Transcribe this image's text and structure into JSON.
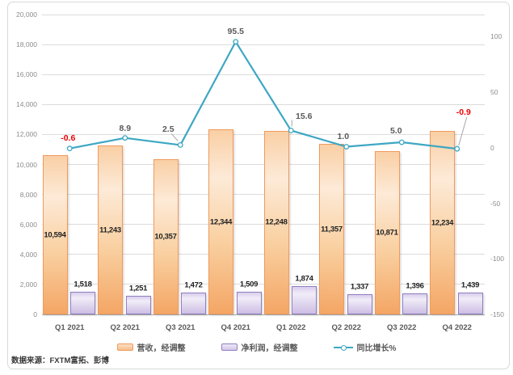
{
  "source_note": "数据来源：FXTM富拓、彭博",
  "chart_data": {
    "type": "combo-bar-line",
    "categories": [
      "Q1 2021",
      "Q2 2021",
      "Q3 2021",
      "Q4 2021",
      "Q1 2022",
      "Q2 2022",
      "Q3 2022",
      "Q4 2022"
    ],
    "series": [
      {
        "name": "营收，经调整",
        "type": "bar",
        "axis": "left",
        "border_color": "#f09a5d",
        "values": [
          10594,
          11243,
          10357,
          12344,
          12248,
          11357,
          10871,
          12234
        ],
        "labels": [
          "10,594",
          "11,243",
          "10,357",
          "12,344",
          "12,248",
          "11,357",
          "10,871",
          "12,234"
        ]
      },
      {
        "name": "净利润，经调整",
        "type": "bar",
        "axis": "left",
        "border_color": "#9080bf",
        "values": [
          1518,
          1251,
          1472,
          1509,
          1874,
          1337,
          1396,
          1439
        ],
        "labels": [
          "1,518",
          "1,251",
          "1,472",
          "1,509",
          "1,874",
          "1,337",
          "1,396",
          "1,439"
        ]
      },
      {
        "name": "同比增长%",
        "type": "line",
        "axis": "right",
        "color": "#3ea7c3",
        "values": [
          -0.6,
          8.9,
          2.5,
          95.5,
          15.6,
          1.0,
          5.0,
          -0.9
        ],
        "labels": [
          "-0.6",
          "8.9",
          "2.5",
          "95.5",
          "15.6",
          "1.0",
          "5.0",
          "-0.9"
        ]
      }
    ],
    "left_axis": {
      "min": 0,
      "max": 20000,
      "tick_values": [
        0,
        2000,
        4000,
        6000,
        8000,
        10000,
        12000,
        14000,
        16000,
        18000,
        20000
      ],
      "tick_labels": [
        "0",
        "2,000",
        "4,000",
        "6,000",
        "8,000",
        "10,000",
        "12,000",
        "14,000",
        "16,000",
        "18,000",
        "20,000"
      ]
    },
    "right_axis": {
      "min": -150,
      "max": 120,
      "tick_values": [
        100,
        50,
        0,
        -50,
        -100,
        -150
      ],
      "tick_labels": [
        "100",
        "50",
        "0",
        "-50",
        "-100",
        "-150"
      ]
    },
    "grid": "horizontal",
    "legend_position": "bottom",
    "negative_label_color": "#ee0000",
    "label_color": "#595959"
  }
}
